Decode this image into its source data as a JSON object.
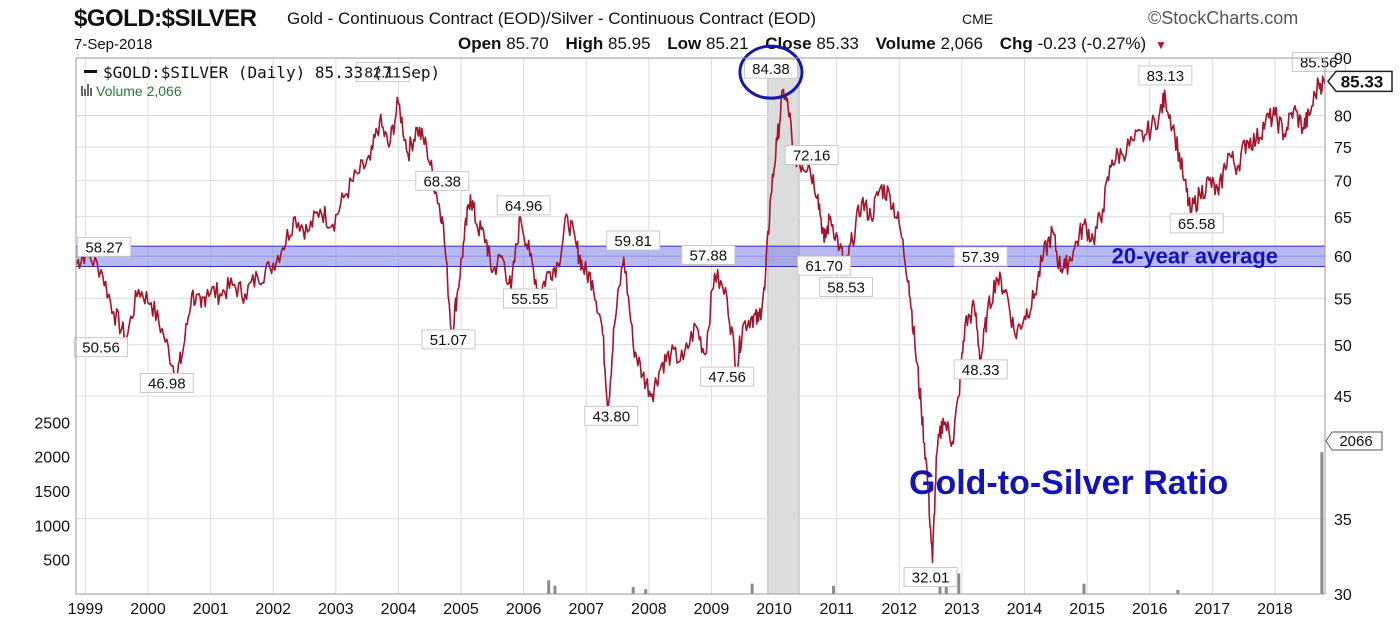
{
  "header": {
    "symbol": "$GOLD:$SILVER",
    "description": "Gold - Continuous Contract (EOD)/Silver - Continuous Contract (EOD)",
    "exchange": "CME",
    "brand": "©StockCharts.com",
    "date": "7-Sep-2018",
    "quote": {
      "open_label": "Open",
      "open": "85.70",
      "high_label": "High",
      "high": "85.95",
      "low_label": "Low",
      "low": "85.21",
      "close_label": "Close",
      "close": "85.33",
      "volume_label": "Volume",
      "volume": "2,066",
      "chg_label": "Chg",
      "chg": "-0.23 (-0.27%)"
    }
  },
  "colors": {
    "price_line": "#a0162c",
    "band": "#7f7fe6",
    "ellipse": "#1818a8",
    "annotation": "#1414b4",
    "shade": "#dcdcdc",
    "grid": "#dcdcdc"
  },
  "chart_data": {
    "type": "line",
    "legend": {
      "line": "$GOLD:$SILVER (Daily) 85.33 (7 Sep)",
      "volume": "Volume 2,066"
    },
    "y_axis_right": {
      "scale": "log",
      "range": [
        30,
        90
      ],
      "ticks": [
        "30",
        "35",
        "45",
        "50",
        "55",
        "60",
        "65",
        "70",
        "75",
        "80",
        "90"
      ]
    },
    "y_axis_left_volume": {
      "range": [
        0,
        3000
      ],
      "ticks": [
        "500",
        "1000",
        "1500",
        "2000",
        "2500"
      ]
    },
    "x_axis": {
      "range": [
        1998.9,
        2018.85
      ],
      "ticks": [
        "1999",
        "2000",
        "2001",
        "2002",
        "2003",
        "2004",
        "2005",
        "2006",
        "2007",
        "2008",
        "2009",
        "2010",
        "2011",
        "2012",
        "2013",
        "2014",
        "2015",
        "2016",
        "2017",
        "2018"
      ]
    },
    "last_value_label": "85.33",
    "last_volume_label": "2066",
    "series": [
      {
        "values": [
          [
            1998.9,
            59.0
          ],
          [
            1999.05,
            60.4
          ],
          [
            1999.3,
            58.3
          ],
          [
            1999.5,
            53.5
          ],
          [
            1999.7,
            50.6
          ],
          [
            1999.9,
            56.0
          ],
          [
            2000.1,
            54.5
          ],
          [
            2000.3,
            51.0
          ],
          [
            2000.5,
            46.98
          ],
          [
            2000.6,
            49.0
          ],
          [
            2000.75,
            55.5
          ],
          [
            2000.9,
            54.0
          ],
          [
            2001.0,
            56.0
          ],
          [
            2001.2,
            55.5
          ],
          [
            2001.4,
            56.5
          ],
          [
            2001.6,
            55.5
          ],
          [
            2001.8,
            57.5
          ],
          [
            2002.0,
            58.5
          ],
          [
            2002.2,
            61.0
          ],
          [
            2002.4,
            65.0
          ],
          [
            2002.6,
            63.0
          ],
          [
            2002.8,
            66.0
          ],
          [
            2003.0,
            64.0
          ],
          [
            2003.2,
            68.0
          ],
          [
            2003.4,
            71.0
          ],
          [
            2003.6,
            73.0
          ],
          [
            2003.75,
            79.0
          ],
          [
            2003.9,
            75.0
          ],
          [
            2004.05,
            82.11
          ],
          [
            2004.2,
            74.0
          ],
          [
            2004.35,
            78.0
          ],
          [
            2004.5,
            75.0
          ],
          [
            2004.65,
            68.38
          ],
          [
            2004.75,
            65.0
          ],
          [
            2004.9,
            51.07
          ],
          [
            2005.0,
            56.0
          ],
          [
            2005.1,
            62.0
          ],
          [
            2005.2,
            68.0
          ],
          [
            2005.3,
            64.0
          ],
          [
            2005.45,
            62.0
          ],
          [
            2005.55,
            58.0
          ],
          [
            2005.7,
            60.0
          ],
          [
            2005.85,
            56.0
          ],
          [
            2006.0,
            64.96
          ],
          [
            2006.15,
            60.0
          ],
          [
            2006.3,
            55.55
          ],
          [
            2006.45,
            58.0
          ],
          [
            2006.6,
            59.0
          ],
          [
            2006.75,
            65.0
          ],
          [
            2006.9,
            61.0
          ],
          [
            2007.0,
            58.5
          ],
          [
            2007.15,
            57.0
          ],
          [
            2007.3,
            52.0
          ],
          [
            2007.4,
            43.8
          ],
          [
            2007.5,
            52.0
          ],
          [
            2007.65,
            59.81
          ],
          [
            2007.8,
            50.0
          ],
          [
            2007.95,
            47.0
          ],
          [
            2008.1,
            45.2
          ],
          [
            2008.25,
            48.0
          ],
          [
            2008.4,
            49.0
          ],
          [
            2008.6,
            48.5
          ],
          [
            2008.8,
            52.0
          ],
          [
            2008.95,
            49.0
          ],
          [
            2009.1,
            57.88
          ],
          [
            2009.3,
            55.0
          ],
          [
            2009.45,
            47.56
          ],
          [
            2009.55,
            52.0
          ],
          [
            2009.7,
            53.0
          ],
          [
            2009.8,
            52.5
          ],
          [
            2009.9,
            56.0
          ],
          [
            2010.0,
            68.0
          ],
          [
            2010.1,
            76.0
          ],
          [
            2010.2,
            84.38
          ],
          [
            2010.3,
            80.0
          ],
          [
            2010.35,
            74.0
          ],
          [
            2010.5,
            72.16
          ],
          [
            2010.6,
            72.5
          ],
          [
            2010.75,
            68.0
          ],
          [
            2010.85,
            61.7
          ],
          [
            2010.95,
            65.0
          ],
          [
            2011.1,
            61.0
          ],
          [
            2011.2,
            58.53
          ],
          [
            2011.3,
            62.0
          ],
          [
            2011.45,
            67.0
          ],
          [
            2011.6,
            65.0
          ],
          [
            2011.75,
            69.0
          ],
          [
            2011.9,
            68.0
          ],
          [
            2012.05,
            64.0
          ],
          [
            2012.2,
            57.0
          ],
          [
            2012.3,
            50.0
          ],
          [
            2012.4,
            44.0
          ],
          [
            2012.5,
            38.0
          ],
          [
            2012.58,
            32.01
          ],
          [
            2012.65,
            40.0
          ],
          [
            2012.75,
            43.0
          ],
          [
            2012.9,
            41.0
          ],
          [
            2013.0,
            45.0
          ],
          [
            2013.1,
            52.0
          ],
          [
            2013.25,
            54.0
          ],
          [
            2013.35,
            48.33
          ],
          [
            2013.45,
            53.0
          ],
          [
            2013.6,
            57.39
          ],
          [
            2013.75,
            56.0
          ],
          [
            2013.9,
            51.0
          ],
          [
            2014.05,
            53.0
          ],
          [
            2014.2,
            55.0
          ],
          [
            2014.35,
            60.0
          ],
          [
            2014.5,
            63.0
          ],
          [
            2014.6,
            59.0
          ],
          [
            2014.7,
            58.5
          ],
          [
            2014.85,
            61.0
          ],
          [
            2015.0,
            64.0
          ],
          [
            2015.15,
            62.0
          ],
          [
            2015.3,
            66.0
          ],
          [
            2015.45,
            73.0
          ],
          [
            2015.6,
            74.0
          ],
          [
            2015.8,
            76.0
          ],
          [
            2016.0,
            77.0
          ],
          [
            2016.2,
            80.0
          ],
          [
            2016.3,
            83.13
          ],
          [
            2016.45,
            77.0
          ],
          [
            2016.6,
            70.0
          ],
          [
            2016.7,
            65.58
          ],
          [
            2016.85,
            68.0
          ],
          [
            2017.0,
            70.0
          ],
          [
            2017.15,
            68.0
          ],
          [
            2017.3,
            74.0
          ],
          [
            2017.45,
            72.0
          ],
          [
            2017.6,
            76.0
          ],
          [
            2017.75,
            76.0
          ],
          [
            2017.9,
            79.0
          ],
          [
            2018.05,
            80.0
          ],
          [
            2018.2,
            77.0
          ],
          [
            2018.35,
            81.0
          ],
          [
            2018.5,
            78.0
          ],
          [
            2018.6,
            80.0
          ],
          [
            2018.75,
            85.56
          ],
          [
            2018.85,
            85.33
          ]
        ]
      }
    ],
    "volume_bars": [
      [
        2006.45,
        200
      ],
      [
        2006.55,
        120
      ],
      [
        2007.8,
        100
      ],
      [
        2008.0,
        70
      ],
      [
        2009.7,
        150
      ],
      [
        2011.0,
        120
      ],
      [
        2012.7,
        280
      ],
      [
        2012.8,
        250
      ],
      [
        2013.0,
        300
      ],
      [
        2015.0,
        150
      ],
      [
        2016.5,
        60
      ],
      [
        2018.8,
        2066
      ]
    ],
    "value_labels": [
      {
        "text": "58.27",
        "x": 1999.35,
        "y": 60.8
      },
      {
        "text": "50.56",
        "x": 1999.3,
        "y": 49.5
      },
      {
        "text": "46.98",
        "x": 2000.35,
        "y": 46.0
      },
      {
        "text": "82.11",
        "x": 2003.8,
        "y": 87.0
      },
      {
        "text": "68.38",
        "x": 2004.75,
        "y": 69.6
      },
      {
        "text": "51.07",
        "x": 2004.85,
        "y": 50.3
      },
      {
        "text": "64.96",
        "x": 2006.05,
        "y": 66.2
      },
      {
        "text": "55.55",
        "x": 2006.15,
        "y": 54.7
      },
      {
        "text": "59.81",
        "x": 2007.8,
        "y": 61.6
      },
      {
        "text": "43.80",
        "x": 2007.45,
        "y": 43.0
      },
      {
        "text": "57.88",
        "x": 2009.0,
        "y": 59.8
      },
      {
        "text": "47.56",
        "x": 2009.3,
        "y": 46.6
      },
      {
        "text": "84.38",
        "x": 2010.0,
        "y": 87.6
      },
      {
        "text": "72.16",
        "x": 2010.65,
        "y": 73.4
      },
      {
        "text": "61.70",
        "x": 2010.85,
        "y": 58.5
      },
      {
        "text": "58.53",
        "x": 2011.2,
        "y": 56.0
      },
      {
        "text": "32.01",
        "x": 2012.55,
        "y": 30.9
      },
      {
        "text": "48.33",
        "x": 2013.35,
        "y": 47.3
      },
      {
        "text": "57.39",
        "x": 2013.35,
        "y": 59.6
      },
      {
        "text": "83.13",
        "x": 2016.3,
        "y": 86.4
      },
      {
        "text": "65.58",
        "x": 2016.8,
        "y": 63.8
      },
      {
        "text": "85.56",
        "x": 2018.75,
        "y": 88.8
      }
    ],
    "band": {
      "label": "20-year average",
      "from": 58.7,
      "to": 61.2
    },
    "shaded_region": [
      2009.95,
      2010.45
    ],
    "annotation": "Gold-to-Silver Ratio"
  }
}
